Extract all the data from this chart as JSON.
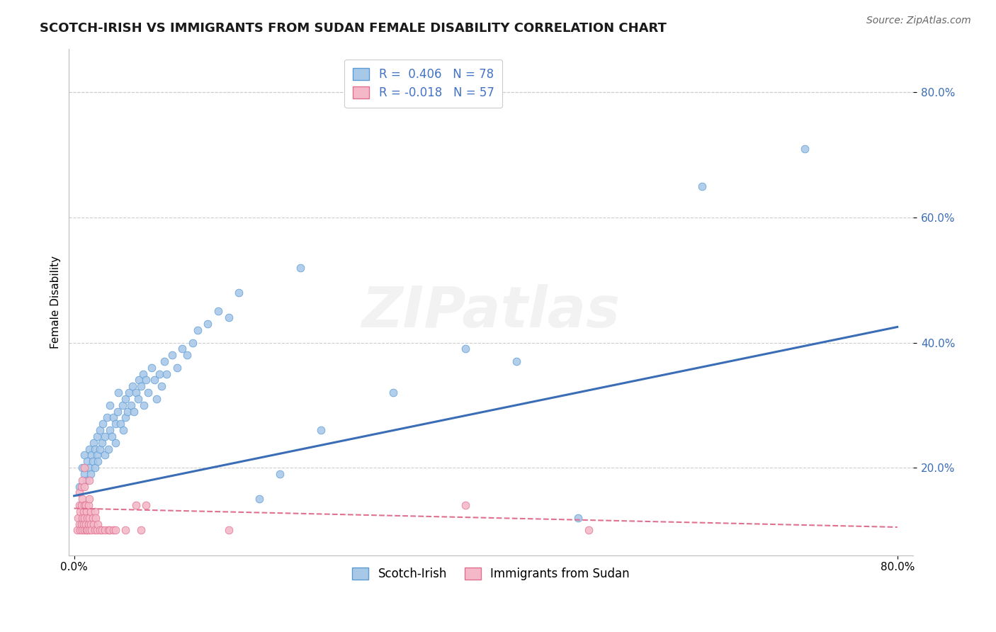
{
  "title": "SCOTCH-IRISH VS IMMIGRANTS FROM SUDAN FEMALE DISABILITY CORRELATION CHART",
  "source": "Source: ZipAtlas.com",
  "series_labels": [
    "Scotch-Irish",
    "Immigrants from Sudan"
  ],
  "ylabel": "Female Disability",
  "xlim": [
    -0.005,
    0.815
  ],
  "ylim": [
    0.06,
    0.87
  ],
  "xtick_positions": [
    0.0,
    0.8
  ],
  "xticklabels": [
    "0.0%",
    "80.0%"
  ],
  "ytick_positions": [
    0.2,
    0.4,
    0.6,
    0.8
  ],
  "ytick_labels": [
    "20.0%",
    "40.0%",
    "60.0%",
    "80.0%"
  ],
  "blue_R": 0.406,
  "blue_N": 78,
  "pink_R": -0.018,
  "pink_N": 57,
  "blue_face": "#a8c8e8",
  "blue_edge": "#5b9bd5",
  "blue_line": "#3a6db5",
  "pink_face": "#f4b8c8",
  "pink_edge": "#e07090",
  "pink_line": "#e07090",
  "background_color": "#ffffff",
  "grid_color": "#cccccc",
  "watermark_text": "ZIPatlas",
  "legend_color": "#4472c4",
  "blue_x": [
    0.005,
    0.008,
    0.01,
    0.01,
    0.012,
    0.013,
    0.015,
    0.015,
    0.016,
    0.017,
    0.018,
    0.019,
    0.02,
    0.02,
    0.022,
    0.022,
    0.023,
    0.025,
    0.025,
    0.027,
    0.028,
    0.03,
    0.03,
    0.032,
    0.033,
    0.035,
    0.035,
    0.037,
    0.038,
    0.04,
    0.04,
    0.042,
    0.043,
    0.045,
    0.047,
    0.048,
    0.05,
    0.05,
    0.052,
    0.053,
    0.055,
    0.057,
    0.058,
    0.06,
    0.062,
    0.063,
    0.065,
    0.067,
    0.068,
    0.07,
    0.072,
    0.075,
    0.078,
    0.08,
    0.083,
    0.085,
    0.088,
    0.09,
    0.095,
    0.1,
    0.105,
    0.11,
    0.115,
    0.12,
    0.13,
    0.14,
    0.15,
    0.16,
    0.18,
    0.2,
    0.22,
    0.24,
    0.31,
    0.38,
    0.43,
    0.49,
    0.61,
    0.71
  ],
  "blue_y": [
    0.17,
    0.2,
    0.19,
    0.22,
    0.18,
    0.21,
    0.2,
    0.23,
    0.19,
    0.22,
    0.21,
    0.24,
    0.2,
    0.23,
    0.22,
    0.25,
    0.21,
    0.23,
    0.26,
    0.24,
    0.27,
    0.22,
    0.25,
    0.28,
    0.23,
    0.26,
    0.3,
    0.25,
    0.28,
    0.24,
    0.27,
    0.29,
    0.32,
    0.27,
    0.3,
    0.26,
    0.28,
    0.31,
    0.29,
    0.32,
    0.3,
    0.33,
    0.29,
    0.32,
    0.31,
    0.34,
    0.33,
    0.35,
    0.3,
    0.34,
    0.32,
    0.36,
    0.34,
    0.31,
    0.35,
    0.33,
    0.37,
    0.35,
    0.38,
    0.36,
    0.39,
    0.38,
    0.4,
    0.42,
    0.43,
    0.45,
    0.44,
    0.48,
    0.15,
    0.19,
    0.52,
    0.26,
    0.32,
    0.39,
    0.37,
    0.12,
    0.65,
    0.71
  ],
  "pink_x": [
    0.003,
    0.004,
    0.005,
    0.005,
    0.005,
    0.006,
    0.006,
    0.007,
    0.007,
    0.007,
    0.008,
    0.008,
    0.008,
    0.008,
    0.009,
    0.009,
    0.01,
    0.01,
    0.01,
    0.01,
    0.01,
    0.011,
    0.011,
    0.012,
    0.012,
    0.013,
    0.013,
    0.014,
    0.014,
    0.015,
    0.015,
    0.015,
    0.015,
    0.016,
    0.016,
    0.017,
    0.018,
    0.019,
    0.02,
    0.02,
    0.021,
    0.022,
    0.023,
    0.025,
    0.027,
    0.03,
    0.033,
    0.035,
    0.038,
    0.04,
    0.05,
    0.06,
    0.065,
    0.07,
    0.15,
    0.38,
    0.5
  ],
  "pink_y": [
    0.1,
    0.12,
    0.11,
    0.14,
    0.16,
    0.1,
    0.13,
    0.11,
    0.14,
    0.17,
    0.1,
    0.12,
    0.15,
    0.18,
    0.11,
    0.13,
    0.1,
    0.12,
    0.14,
    0.17,
    0.2,
    0.11,
    0.14,
    0.1,
    0.13,
    0.1,
    0.12,
    0.11,
    0.14,
    0.1,
    0.12,
    0.15,
    0.18,
    0.11,
    0.13,
    0.1,
    0.12,
    0.11,
    0.1,
    0.13,
    0.12,
    0.1,
    0.11,
    0.1,
    0.1,
    0.1,
    0.1,
    0.1,
    0.1,
    0.1,
    0.1,
    0.14,
    0.1,
    0.14,
    0.1,
    0.14,
    0.1
  ]
}
